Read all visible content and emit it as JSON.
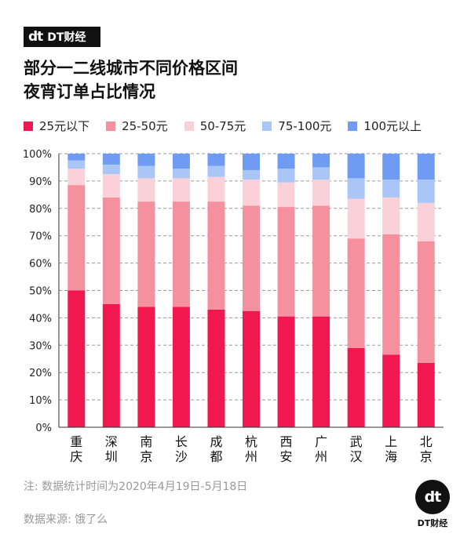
{
  "brand": {
    "logo_mark": "dt",
    "logo_text": "DT财经"
  },
  "title_line1": "部分一二线城市不同价格区间",
  "title_line2": "夜宵订单占比情况",
  "note": "注: 数据统计时间为2020年4月19日-5月18日",
  "source": "数据来源: 饿了么",
  "chart_data": {
    "type": "bar",
    "stacked": true,
    "title": "部分一二线城市不同价格区间 夜宵订单占比情况",
    "xlabel": "",
    "ylabel": "",
    "ylim": [
      0,
      100
    ],
    "y_ticks": [
      "0%",
      "10%",
      "20%",
      "30%",
      "40%",
      "50%",
      "60%",
      "70%",
      "80%",
      "90%",
      "100%"
    ],
    "grid": true,
    "legend": "top",
    "categories": [
      "重庆",
      "深圳",
      "南京",
      "长沙",
      "成都",
      "杭州",
      "西安",
      "广州",
      "武汉",
      "上海",
      "北京"
    ],
    "series": [
      {
        "name": "25元以下",
        "color": "#f0184f",
        "values": [
          50.0,
          45.0,
          44.0,
          44.0,
          43.0,
          42.5,
          40.5,
          40.5,
          29.0,
          26.5,
          23.5
        ]
      },
      {
        "name": "25-50元",
        "color": "#f5909f",
        "values": [
          38.5,
          39.0,
          38.5,
          38.5,
          39.5,
          38.5,
          40.0,
          40.5,
          40.0,
          44.0,
          44.5
        ]
      },
      {
        "name": "50-75元",
        "color": "#fad0d9",
        "values": [
          6.0,
          8.5,
          8.5,
          8.5,
          9.0,
          9.5,
          9.0,
          9.5,
          14.5,
          13.5,
          14.0
        ]
      },
      {
        "name": "75-100元",
        "color": "#a9c6f7",
        "values": [
          3.0,
          3.5,
          4.5,
          3.5,
          4.0,
          3.5,
          5.0,
          4.5,
          7.5,
          6.5,
          8.5
        ]
      },
      {
        "name": "100元以上",
        "color": "#6f9cf2",
        "values": [
          2.5,
          4.0,
          4.5,
          5.5,
          4.5,
          6.0,
          5.5,
          5.0,
          9.0,
          9.5,
          9.5
        ]
      }
    ]
  }
}
